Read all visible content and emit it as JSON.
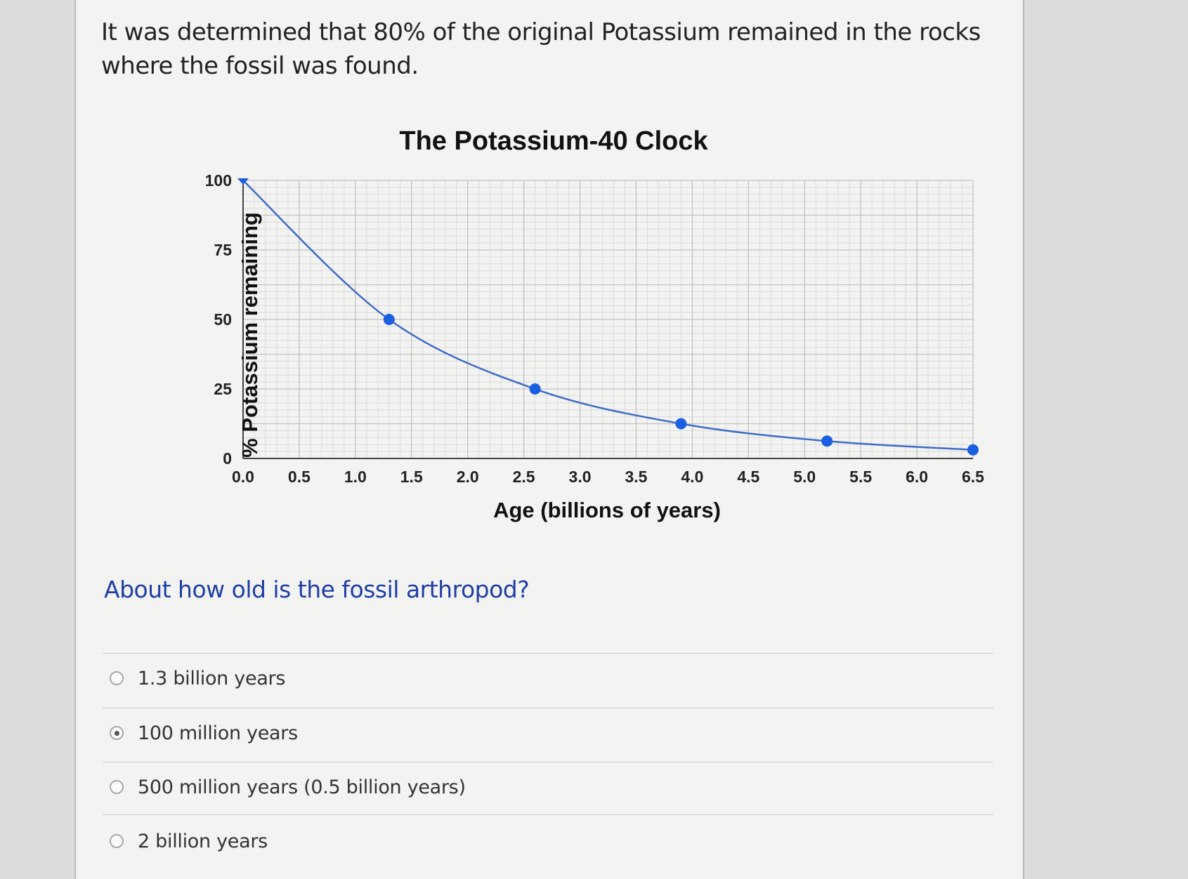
{
  "intro_text": "It was determined that 80% of the original Potassium remained in the rocks where the fossil was found.",
  "question": "About how old is the fossil arthropod?",
  "options": [
    {
      "label": "1.3 billion years",
      "selected": false
    },
    {
      "label": "100 million years",
      "selected": true
    },
    {
      "label": "500 million years (0.5 billion years)",
      "selected": false
    },
    {
      "label": "2 billion years",
      "selected": false
    }
  ],
  "colors": {
    "question": "#1e3fa6",
    "series": "#3f6cc8",
    "marker": "#1a5fe0"
  },
  "chart_data": {
    "type": "line",
    "title": "The Potassium-40 Clock",
    "xlabel": "Age (billions of years)",
    "ylabel": "% Potassium remaining",
    "xlim": [
      0,
      6.5
    ],
    "ylim": [
      0,
      100
    ],
    "x_ticks": [
      "0.0",
      "0.5",
      "1.0",
      "1.5",
      "2.0",
      "2.5",
      "3.0",
      "3.5",
      "4.0",
      "4.5",
      "5.0",
      "5.5",
      "6.0",
      "6.5"
    ],
    "y_ticks": [
      "0",
      "25",
      "50",
      "75",
      "100"
    ],
    "grid": true,
    "series": [
      {
        "x": [
          0,
          1.3,
          2.6,
          3.9,
          5.2,
          6.5
        ],
        "y": [
          100,
          50,
          25,
          12.5,
          6.25,
          3.1
        ]
      }
    ]
  }
}
